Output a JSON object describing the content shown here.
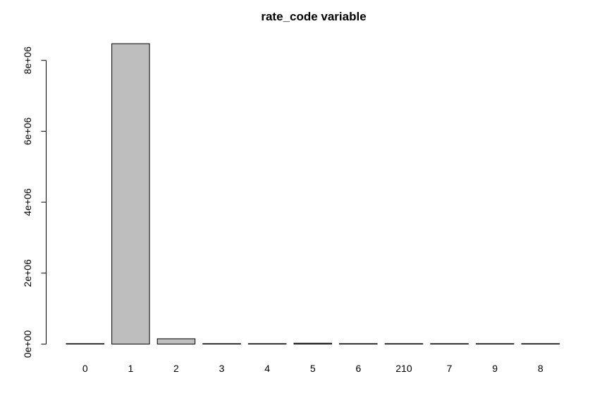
{
  "chart_data": {
    "type": "bar",
    "title": "rate_code variable",
    "xlabel": "",
    "ylabel": "",
    "categories": [
      "0",
      "1",
      "2",
      "3",
      "4",
      "5",
      "6",
      "210",
      "7",
      "9",
      "8"
    ],
    "values": [
      1000,
      8470000,
      150000,
      12000,
      5000,
      25000,
      800,
      100,
      100,
      100,
      100
    ],
    "ylim": [
      0,
      8470000
    ],
    "yticks": [
      0,
      2000000,
      4000000,
      6000000,
      8000000
    ],
    "ytick_labels": [
      "0e+00",
      "2e+06",
      "4e+06",
      "6e+06",
      "8e+06"
    ],
    "grid": false,
    "bar_fill": "#bebebe",
    "bar_stroke": "#000000"
  }
}
